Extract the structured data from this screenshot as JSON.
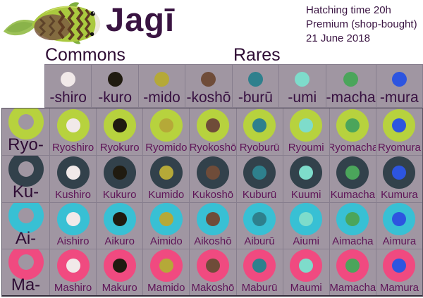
{
  "page": {
    "title": "Jagī",
    "info_lines": [
      "Hatching time 20h",
      "Premium (shop-bought)",
      "21 June 2018"
    ],
    "section_labels": {
      "commons": "Commons",
      "rares": "Rares"
    },
    "mascot_icon": "jagi-fish-illustration"
  },
  "colors": {
    "cell_bg": "#a096a2",
    "grid_border": "#877e8e",
    "outer_border": "#5a5362",
    "title_text": "#3a1442",
    "dark_text": "#371040",
    "name_text": "#5e1457"
  },
  "columns": [
    {
      "suffix": "-shiro",
      "color": "#f1e9e9"
    },
    {
      "suffix": "-kuro",
      "color": "#201b10"
    },
    {
      "suffix": "-mido",
      "color": "#b5a938"
    },
    {
      "suffix": "-koshō",
      "color": "#6f4c39"
    },
    {
      "suffix": "-burū",
      "color": "#2e808d"
    },
    {
      "suffix": "-umi",
      "color": "#7edccb"
    },
    {
      "suffix": "-macha",
      "color": "#4ba55b"
    },
    {
      "suffix": "-mura",
      "color": "#2d55e0"
    }
  ],
  "rows": [
    {
      "prefix": "Ryo-",
      "ring_color": "#b7d23e",
      "cells": [
        "Ryoshiro",
        "Ryokuro",
        "Ryomido",
        "Ryokoshō",
        "Ryoburū",
        "Ryoumi",
        "Ryomacha",
        "Ryomura"
      ]
    },
    {
      "prefix": "Ku-",
      "ring_color": "#32414b",
      "cells": [
        "Kushiro",
        "Kukuro",
        "Kumido",
        "Kukoshō",
        "Kuburū",
        "Kuumi",
        "Kumacha",
        "Kumura"
      ]
    },
    {
      "prefix": "Ai-",
      "ring_color": "#38c0d4",
      "cells": [
        "Aishiro",
        "Aikuro",
        "Aimido",
        "Aikoshō",
        "Aiburū",
        "Aiumi",
        "Aimacha",
        "Aimura"
      ]
    },
    {
      "prefix": "Ma-",
      "ring_color": "#f04a80",
      "cells": [
        "Mashiro",
        "Makuro",
        "Mamido",
        "Makoshō",
        "Maburū",
        "Maumi",
        "Mamacha",
        "Mamura"
      ]
    }
  ]
}
